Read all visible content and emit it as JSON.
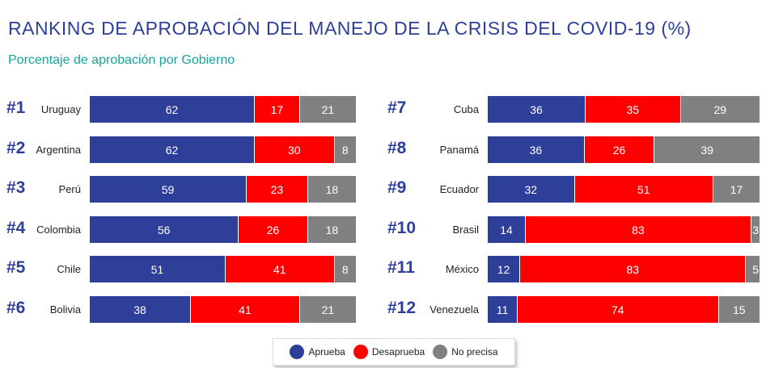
{
  "title": "RANKING DE APROBACIÓN DEL MANEJO DE LA CRISIS DEL COVID-19 (%)",
  "subtitle": "Porcentaje de aprobación por Gobierno",
  "colors": {
    "aprueba": "#2e3f9a",
    "desaprueba": "#ff0000",
    "no_precisa": "#808080"
  },
  "legend": [
    "Aprueba",
    "Desaprueba",
    "No precisa"
  ],
  "chart_data": {
    "type": "bar",
    "orientation": "horizontal",
    "stacked": true,
    "title": "RANKING DE APROBACIÓN DEL MANEJO DE LA CRISIS DEL COVID-19 (%)",
    "subtitle": "Porcentaje de aprobación por Gobierno",
    "series_names": [
      "Aprueba",
      "Desaprueba",
      "No precisa"
    ],
    "rows": [
      {
        "rank": "#1",
        "country": "Uruguay",
        "values": [
          62,
          17,
          21
        ]
      },
      {
        "rank": "#2",
        "country": "Argentina",
        "values": [
          62,
          30,
          8
        ]
      },
      {
        "rank": "#3",
        "country": "Perú",
        "values": [
          59,
          23,
          18
        ]
      },
      {
        "rank": "#4",
        "country": "Colombia",
        "values": [
          56,
          26,
          18
        ]
      },
      {
        "rank": "#5",
        "country": "Chile",
        "values": [
          51,
          41,
          8
        ]
      },
      {
        "rank": "#6",
        "country": "Bolivia",
        "values": [
          38,
          41,
          21
        ]
      },
      {
        "rank": "#7",
        "country": "Cuba",
        "values": [
          36,
          35,
          29
        ]
      },
      {
        "rank": "#8",
        "country": "Panamá",
        "values": [
          36,
          26,
          39
        ]
      },
      {
        "rank": "#9",
        "country": "Ecuador",
        "values": [
          32,
          51,
          17
        ]
      },
      {
        "rank": "#10",
        "country": "Brasil",
        "values": [
          14,
          83,
          3
        ]
      },
      {
        "rank": "#11",
        "country": "México",
        "values": [
          12,
          83,
          5
        ]
      },
      {
        "rank": "#12",
        "country": "Venezuela",
        "values": [
          11,
          74,
          15
        ]
      }
    ]
  }
}
